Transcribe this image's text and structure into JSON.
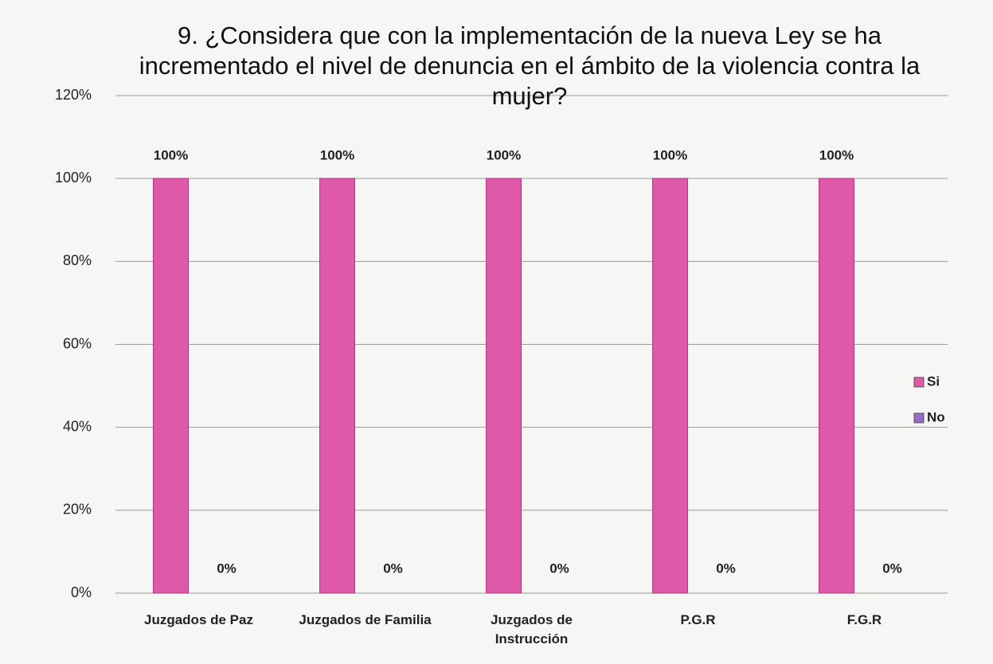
{
  "chart_data": {
    "type": "bar",
    "title": "9. ¿Considera que con la implementación de la nueva Ley se ha incrementado el nivel de denuncia en el ámbito de la violencia contra la mujer?",
    "categories": [
      "Juzgados de Paz",
      "Juzgados de Familia",
      "Juzgados de Instrucción",
      "P.G.R",
      "F.G.R"
    ],
    "series": [
      {
        "name": "Si",
        "color": "#de5aa8",
        "values": [
          100,
          100,
          100,
          100,
          100
        ],
        "value_labels": [
          "100%",
          "100%",
          "100%",
          "100%",
          "100%"
        ]
      },
      {
        "name": "No",
        "color": "#9a6cc8",
        "values": [
          0,
          0,
          0,
          0,
          0
        ],
        "value_labels": [
          "0%",
          "0%",
          "0%",
          "0%",
          "0%"
        ]
      }
    ],
    "ylim": [
      0,
      120
    ],
    "yticks": [
      {
        "value": 0,
        "label": "0%"
      },
      {
        "value": 20,
        "label": "20%"
      },
      {
        "value": 40,
        "label": "40%"
      },
      {
        "value": 60,
        "label": "60%"
      },
      {
        "value": 80,
        "label": "80%"
      },
      {
        "value": 100,
        "label": "100%"
      },
      {
        "value": 120,
        "label": "120%"
      }
    ],
    "grid": true,
    "legend": "right"
  }
}
